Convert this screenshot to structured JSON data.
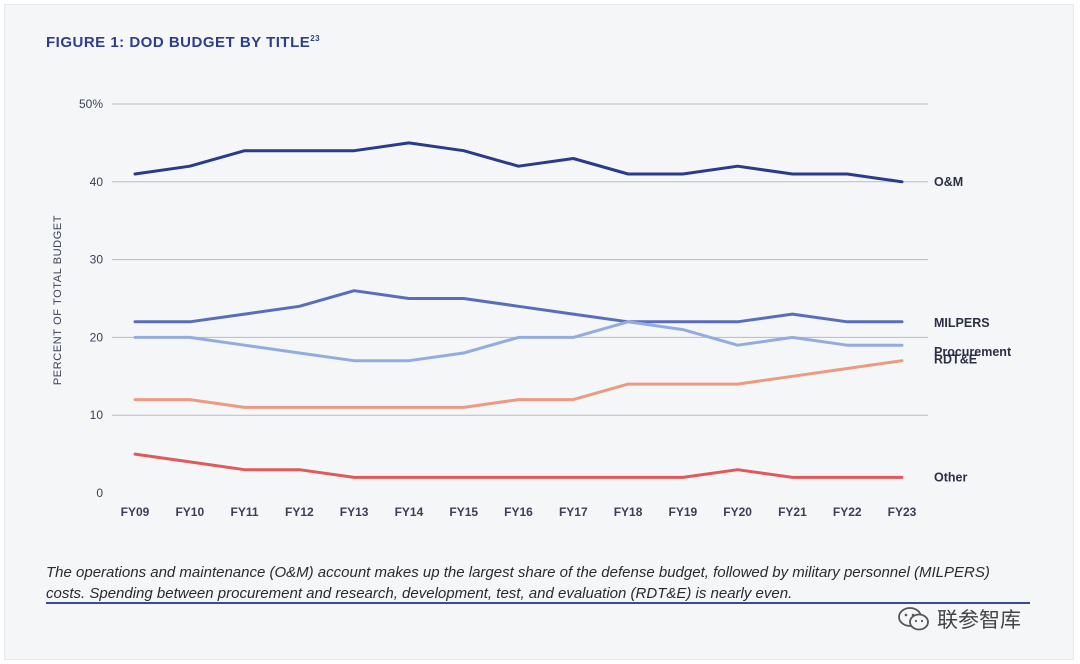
{
  "figure": {
    "title": "FIGURE 1: DOD BUDGET BY TITLE",
    "footnote": "23",
    "caption": "The operations and maintenance (O&M) account makes up the largest share of the defense budget, followed by military personnel (MILPERS) costs. Spending between procurement and research, development, test, and evaluation (RDT&E) is nearly even."
  },
  "watermark": {
    "text": "联参智库",
    "icon": "wechat-icon"
  },
  "chart_data": {
    "type": "line",
    "ylabel": "PERCENT OF TOTAL BUDGET",
    "xlabel": "",
    "ylim": [
      0,
      50
    ],
    "yticks": [
      0,
      10,
      20,
      30,
      40,
      50
    ],
    "ytick_labels": [
      "0",
      "10",
      "20",
      "30",
      "40",
      "50%"
    ],
    "grid": true,
    "legend": "right",
    "x": [
      "FY09",
      "FY10",
      "FY11",
      "FY12",
      "FY13",
      "FY14",
      "FY15",
      "FY16",
      "FY17",
      "FY18",
      "FY19",
      "FY20",
      "FY21",
      "FY22",
      "FY23"
    ],
    "series": [
      {
        "name": "O&M",
        "color": "#2c3a8a",
        "values": [
          41,
          42,
          44,
          44,
          44,
          45,
          44,
          42,
          43,
          41,
          41,
          42,
          41,
          41,
          40
        ]
      },
      {
        "name": "MILPERS",
        "color": "#5a6dbd",
        "values": [
          22,
          22,
          23,
          24,
          26,
          25,
          25,
          24,
          23,
          22,
          22,
          22,
          23,
          22,
          22
        ]
      },
      {
        "name": "Procurement",
        "color": "#93acdf",
        "values": [
          20,
          20,
          19,
          18,
          17,
          17,
          18,
          20,
          20,
          22,
          21,
          19,
          20,
          19,
          19
        ]
      },
      {
        "name": "RDT&E",
        "color": "#ec9a80",
        "values": [
          12,
          12,
          11,
          11,
          11,
          11,
          11,
          12,
          12,
          14,
          14,
          14,
          15,
          16,
          17
        ]
      },
      {
        "name": "Other",
        "color": "#e05a5c",
        "values": [
          5,
          4,
          3,
          3,
          2,
          2,
          2,
          2,
          2,
          2,
          2,
          3,
          2,
          2,
          2
        ]
      }
    ]
  }
}
